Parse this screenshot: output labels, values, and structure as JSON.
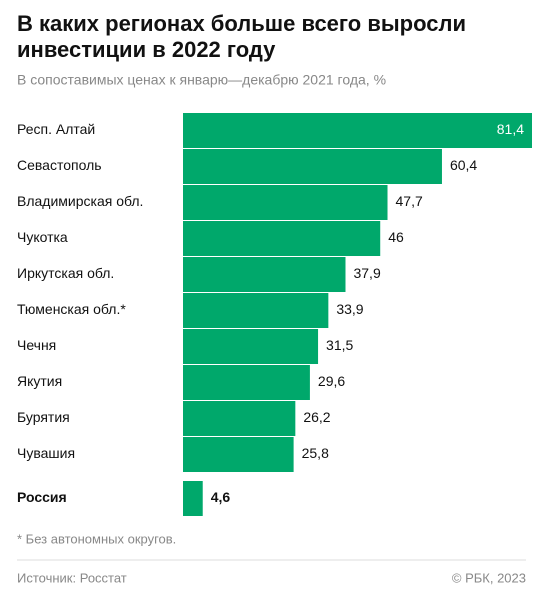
{
  "chart_data": {
    "type": "hbar",
    "title": [
      "В каких регионах больше всего выросли",
      "инвестиции в 2022 году"
    ],
    "subtitle": "В сопоставимых ценах к январю—декабрю 2021 года, %",
    "categories": [
      "Респ. Алтай",
      "Севастополь",
      "Владимирская обл.",
      "Чукотка",
      "Иркутская обл.",
      "Тюменская обл.*",
      "Чечня",
      "Якутия",
      "Бурятия",
      "Чувашия",
      "Россия"
    ],
    "values": [
      81.4,
      60.4,
      47.7,
      46,
      37.9,
      33.9,
      31.5,
      29.6,
      26.2,
      25.8,
      4.6
    ],
    "value_labels": [
      "81,4",
      "60,4",
      "47,7",
      "46",
      "37,9",
      "33,9",
      "31,5",
      "29,6",
      "26,2",
      "25,8",
      "4,6"
    ],
    "color": "#00a86b",
    "footnote": "* Без автономных округов.",
    "source": "Источник: Росстат",
    "credit": "© РБК, 2023"
  }
}
